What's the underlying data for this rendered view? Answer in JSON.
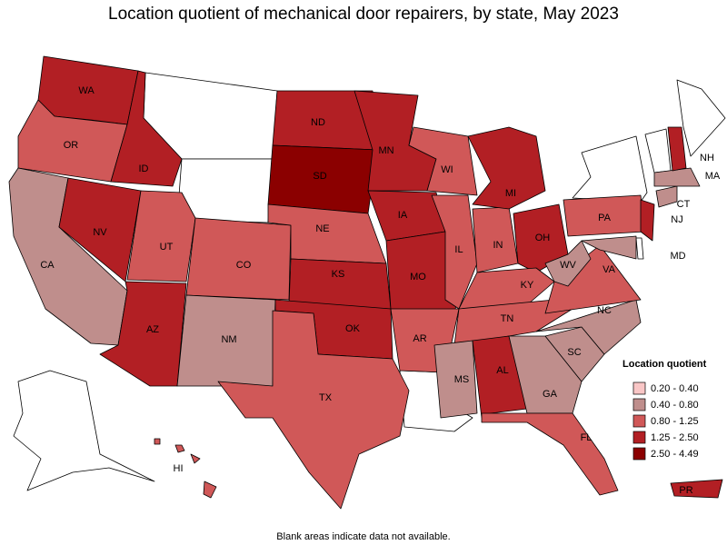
{
  "title": "Location quotient of mechanical door repairers, by state, May 2023",
  "legend": {
    "title": "Location quotient",
    "items": [
      {
        "label": "0.20 - 0.40",
        "color": "#f9c6c6"
      },
      {
        "label": "0.40 - 0.80",
        "color": "#bf8e8c"
      },
      {
        "label": "0.80 - 1.25",
        "color": "#d05858"
      },
      {
        "label": "1.25 - 2.50",
        "color": "#b21f24"
      },
      {
        "label": "2.50 - 4.49",
        "color": "#8b0000"
      }
    ]
  },
  "states": [
    {
      "abbr": "WA",
      "class": 3
    },
    {
      "abbr": "OR",
      "class": 2
    },
    {
      "abbr": "CA",
      "class": 1
    },
    {
      "abbr": "ID",
      "class": 3
    },
    {
      "abbr": "NV",
      "class": 3
    },
    {
      "abbr": "UT",
      "class": 2
    },
    {
      "abbr": "AZ",
      "class": 3
    },
    {
      "abbr": "CO",
      "class": 2
    },
    {
      "abbr": "NM",
      "class": 1
    },
    {
      "abbr": "ND",
      "class": 3
    },
    {
      "abbr": "SD",
      "class": 4
    },
    {
      "abbr": "NE",
      "class": 2
    },
    {
      "abbr": "KS",
      "class": 3
    },
    {
      "abbr": "OK",
      "class": 3
    },
    {
      "abbr": "TX",
      "class": 2
    },
    {
      "abbr": "MN",
      "class": 3
    },
    {
      "abbr": "IA",
      "class": 3
    },
    {
      "abbr": "MO",
      "class": 3
    },
    {
      "abbr": "AR",
      "class": 2
    },
    {
      "abbr": "WI",
      "class": 2
    },
    {
      "abbr": "IL",
      "class": 2
    },
    {
      "abbr": "IN",
      "class": 2
    },
    {
      "abbr": "MI",
      "class": 3
    },
    {
      "abbr": "OH",
      "class": 3
    },
    {
      "abbr": "KY",
      "class": 2
    },
    {
      "abbr": "TN",
      "class": 2
    },
    {
      "abbr": "MS",
      "class": 1
    },
    {
      "abbr": "AL",
      "class": 3
    },
    {
      "abbr": "GA",
      "class": 1
    },
    {
      "abbr": "FL",
      "class": 2
    },
    {
      "abbr": "SC",
      "class": 1
    },
    {
      "abbr": "NC",
      "class": 1
    },
    {
      "abbr": "VA",
      "class": 2
    },
    {
      "abbr": "WV",
      "class": 1
    },
    {
      "abbr": "PA",
      "class": 2
    },
    {
      "abbr": "NJ",
      "class": 3
    },
    {
      "abbr": "MD",
      "class": 1
    },
    {
      "abbr": "CT",
      "class": 1
    },
    {
      "abbr": "MA",
      "class": 1
    },
    {
      "abbr": "NH",
      "class": 3
    },
    {
      "abbr": "HI",
      "class": 2
    },
    {
      "abbr": "PR",
      "class": 3
    }
  ],
  "note": "Blank areas indicate data not available."
}
